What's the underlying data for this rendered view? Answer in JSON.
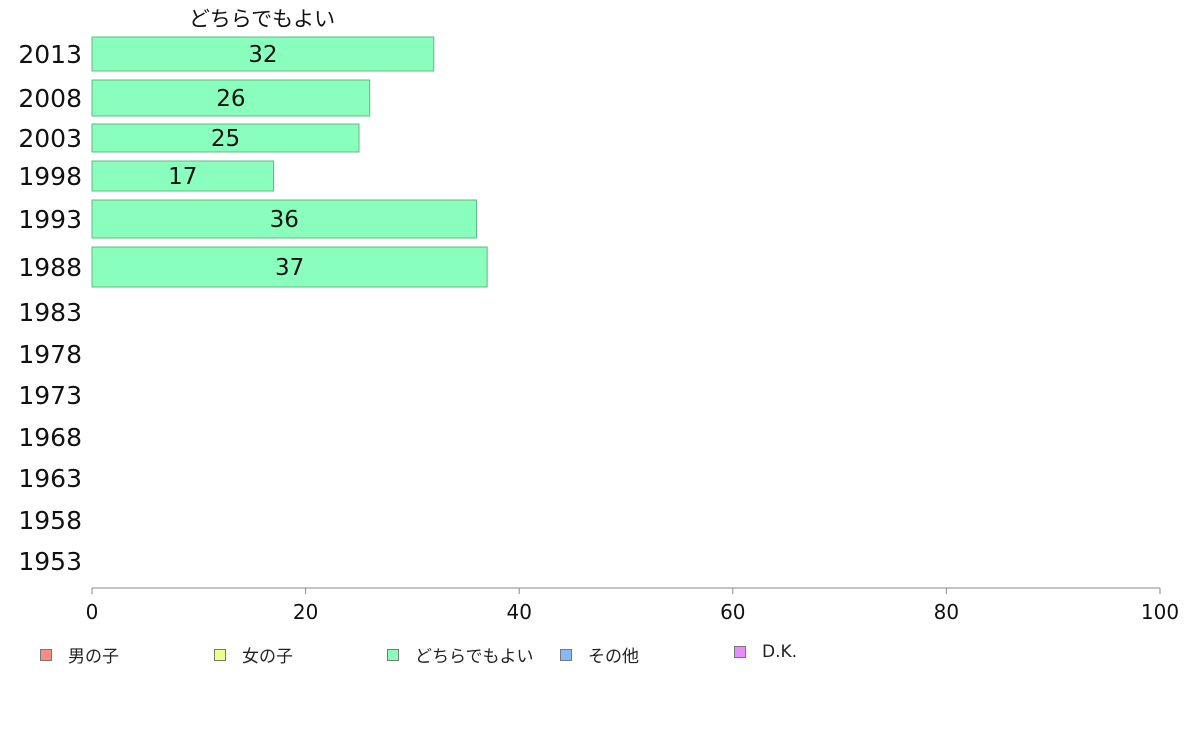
{
  "chart_data": {
    "type": "bar",
    "orientation": "horizontal",
    "title": "どちらでもよい",
    "categories": [
      "2013",
      "2008",
      "2003",
      "1998",
      "1993",
      "1988",
      "1983",
      "1978",
      "1973",
      "1968",
      "1963",
      "1958",
      "1953"
    ],
    "series": [
      {
        "name": "どちらでもよい",
        "color": "#8affbd",
        "values": [
          32,
          26,
          25,
          17,
          36,
          37,
          null,
          null,
          null,
          null,
          null,
          null,
          null
        ]
      }
    ],
    "xlim": [
      0,
      100
    ],
    "xticks": [
      0,
      20,
      40,
      60,
      80,
      100
    ],
    "grid": false,
    "legend": [
      {
        "label": "男の子",
        "color": "#ff8a8a"
      },
      {
        "label": "女の子",
        "color": "#eeff8a"
      },
      {
        "label": "どちらでもよい",
        "color": "#8affbd"
      },
      {
        "label": "その他",
        "color": "#8ab8ff"
      },
      {
        "label": "D.K.",
        "color": "#e98aff"
      }
    ],
    "legend_position": "bottom"
  }
}
